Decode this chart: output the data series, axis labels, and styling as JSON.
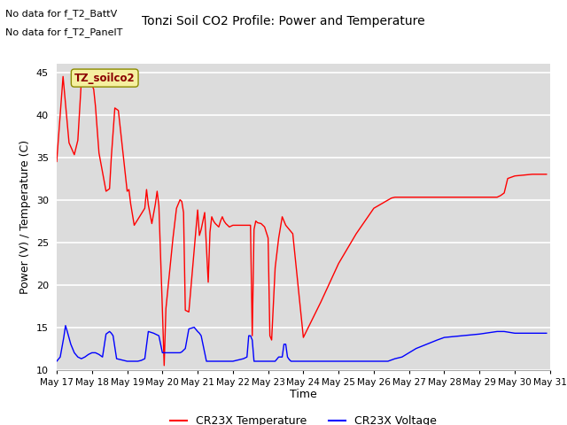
{
  "title": "Tonzi Soil CO2 Profile: Power and Temperature",
  "xlabel": "Time",
  "ylabel": "Power (V) / Temperature (C)",
  "ylim": [
    10,
    46
  ],
  "yticks": [
    10,
    15,
    20,
    25,
    30,
    35,
    40,
    45
  ],
  "top_text_line1": "No data for f_T2_BattV",
  "top_text_line2": "No data for f_T2_PanelT",
  "legend_label": "TZ_soilco2",
  "legend1": "CR23X Temperature",
  "legend2": "CR23X Voltage",
  "line1_color": "red",
  "line2_color": "blue",
  "bg_color": "#e8e8e8",
  "plot_bg_color": "#dcdcdc",
  "xtick_labels": [
    "May 17",
    "May 18",
    "May 19",
    "May 20",
    "May 21",
    "May 22",
    "May 23",
    "May 24",
    "May 25",
    "May 26",
    "May 27",
    "May 28",
    "May 29",
    "May 30",
    "May 31"
  ],
  "red_x": [
    0.0,
    0.18,
    0.35,
    0.5,
    0.6,
    0.7,
    1.0,
    1.05,
    1.1,
    1.2,
    1.4,
    1.5,
    1.55,
    1.65,
    1.75,
    2.0,
    2.05,
    2.1,
    2.2,
    2.5,
    2.55,
    2.6,
    2.7,
    2.8,
    2.85,
    2.9,
    3.0,
    3.05,
    3.1,
    3.3,
    3.4,
    3.5,
    3.55,
    3.6,
    3.65,
    3.75,
    4.0,
    4.05,
    4.1,
    4.2,
    4.3,
    4.35,
    4.4,
    4.45,
    4.5,
    4.6,
    4.65,
    4.7,
    4.75,
    4.8,
    4.9,
    5.0,
    5.5,
    5.55,
    5.6,
    5.65,
    5.7,
    5.8,
    5.9,
    6.0,
    6.05,
    6.1,
    6.2,
    6.3,
    6.4,
    6.45,
    6.5,
    6.6,
    6.7,
    7.0,
    7.5,
    8.0,
    8.5,
    9.0,
    9.5,
    9.6,
    9.7,
    9.8,
    9.9,
    10.0,
    10.5,
    11.0,
    11.5,
    12.0,
    12.5,
    12.6,
    12.7,
    12.8,
    13.0,
    13.5,
    13.9
  ],
  "red_y": [
    34.5,
    44.5,
    36.7,
    35.3,
    37.0,
    44.0,
    43.5,
    43.0,
    41.0,
    35.5,
    31.0,
    31.3,
    35.0,
    40.8,
    40.5,
    31.0,
    31.2,
    29.5,
    27.0,
    29.0,
    31.2,
    29.4,
    27.2,
    29.5,
    31.0,
    29.3,
    17.0,
    10.5,
    17.2,
    25.5,
    29.0,
    30.0,
    29.8,
    28.5,
    17.0,
    16.8,
    28.8,
    25.8,
    26.5,
    28.5,
    20.3,
    26.2,
    28.0,
    27.5,
    27.2,
    26.8,
    27.5,
    28.0,
    27.5,
    27.2,
    26.8,
    27.0,
    27.0,
    14.0,
    26.5,
    27.5,
    27.3,
    27.2,
    26.8,
    25.5,
    14.0,
    13.5,
    22.0,
    25.5,
    28.0,
    27.5,
    27.0,
    26.5,
    26.0,
    13.8,
    18.0,
    22.5,
    26.0,
    29.0,
    30.2,
    30.3,
    30.3,
    30.3,
    30.3,
    30.3,
    30.3,
    30.3,
    30.3,
    30.3,
    30.3,
    30.5,
    30.8,
    32.5,
    32.8,
    33.0,
    33.0
  ],
  "blue_x": [
    0.0,
    0.1,
    0.2,
    0.25,
    0.3,
    0.4,
    0.5,
    0.6,
    0.7,
    0.8,
    0.9,
    1.0,
    1.1,
    1.2,
    1.3,
    1.4,
    1.5,
    1.55,
    1.6,
    1.7,
    1.8,
    1.9,
    2.0,
    2.1,
    2.15,
    2.2,
    2.3,
    2.4,
    2.5,
    2.6,
    2.75,
    2.9,
    3.0,
    3.2,
    3.35,
    3.5,
    3.55,
    3.6,
    3.65,
    3.75,
    3.9,
    4.0,
    4.05,
    4.1,
    4.25,
    4.35,
    4.5,
    4.55,
    4.6,
    4.65,
    4.7,
    4.8,
    4.9,
    5.0,
    5.1,
    5.2,
    5.3,
    5.4,
    5.45,
    5.5,
    5.55,
    5.6,
    5.7,
    5.8,
    5.9,
    6.0,
    6.1,
    6.2,
    6.3,
    6.4,
    6.45,
    6.5,
    6.55,
    6.6,
    6.65,
    6.7,
    6.75,
    6.8,
    6.9,
    7.0,
    7.5,
    8.0,
    8.5,
    9.0,
    9.2,
    9.4,
    9.6,
    9.8,
    10.0,
    10.2,
    10.5,
    10.8,
    11.0,
    11.5,
    12.0,
    12.5,
    12.7,
    13.0,
    13.5,
    13.9
  ],
  "blue_y": [
    11.0,
    11.5,
    13.8,
    15.2,
    14.5,
    13.0,
    12.0,
    11.5,
    11.3,
    11.5,
    11.8,
    12.0,
    12.0,
    11.8,
    11.5,
    14.2,
    14.5,
    14.3,
    14.0,
    11.3,
    11.2,
    11.1,
    11.0,
    11.0,
    11.0,
    11.0,
    11.0,
    11.1,
    11.3,
    14.5,
    14.3,
    14.0,
    12.0,
    12.0,
    12.0,
    12.0,
    12.1,
    12.3,
    12.5,
    14.8,
    15.0,
    14.5,
    14.3,
    14.0,
    11.0,
    11.0,
    11.0,
    11.0,
    11.0,
    11.0,
    11.0,
    11.0,
    11.0,
    11.0,
    11.1,
    11.2,
    11.3,
    11.5,
    14.0,
    14.0,
    13.5,
    11.0,
    11.0,
    11.0,
    11.0,
    11.0,
    11.0,
    11.0,
    11.5,
    11.5,
    13.0,
    13.0,
    11.5,
    11.2,
    11.0,
    11.0,
    11.0,
    11.0,
    11.0,
    11.0,
    11.0,
    11.0,
    11.0,
    11.0,
    11.0,
    11.0,
    11.3,
    11.5,
    12.0,
    12.5,
    13.0,
    13.5,
    13.8,
    14.0,
    14.2,
    14.5,
    14.5,
    14.3,
    14.3,
    14.3
  ]
}
